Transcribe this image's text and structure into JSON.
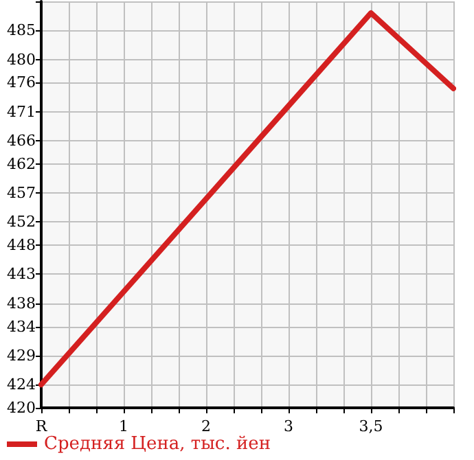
{
  "chart_data": {
    "type": "line",
    "categories": [
      "R",
      "1",
      "2",
      "3",
      "3,5",
      null
    ],
    "series": [
      {
        "name": "Средняя Цена, тыс. йен",
        "color": "#d42020",
        "values": [
          424,
          440,
          456,
          472,
          488,
          475
        ]
      }
    ],
    "ylim": [
      420,
      490
    ],
    "yticks": [
      420,
      424,
      429,
      434,
      438,
      443,
      448,
      452,
      457,
      462,
      466,
      471,
      476,
      480,
      485,
      {
        "value": 490,
        "label": null
      }
    ],
    "grid": true,
    "legend": "bottom left",
    "marker": "none",
    "line_style": "solid"
  }
}
